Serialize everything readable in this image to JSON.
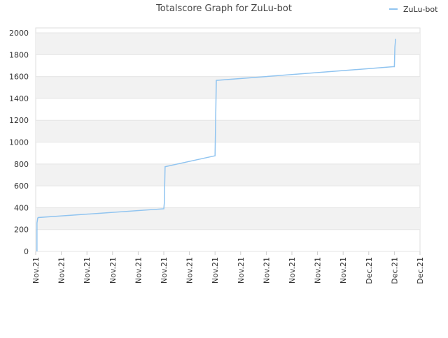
{
  "chart_data": {
    "type": "line",
    "title": "Totalscore Graph for ZuLu-bot",
    "x": [
      0.05,
      0.05,
      0.08,
      0.1,
      5.0,
      5.02,
      5.05,
      7.0,
      7.02,
      7.05,
      13.95,
      14.0,
      14.02,
      14.05
    ],
    "series": [
      {
        "name": "ZuLu-bot",
        "color": "#90c4f0",
        "values": [
          0,
          260,
          305,
          310,
          390,
          440,
          775,
          875,
          1150,
          1565,
          1690,
          1690,
          1870,
          1945
        ]
      }
    ],
    "xlim": [
      0,
      15
    ],
    "xticks": [
      {
        "value": 0,
        "label": "Nov.21"
      },
      {
        "value": 1,
        "label": "Nov.21"
      },
      {
        "value": 2,
        "label": "Nov.21"
      },
      {
        "value": 3,
        "label": "Nov.21"
      },
      {
        "value": 4,
        "label": "Nov.21"
      },
      {
        "value": 5,
        "label": "Nov.21"
      },
      {
        "value": 6,
        "label": "Nov.21"
      },
      {
        "value": 7,
        "label": "Nov.21"
      },
      {
        "value": 8,
        "label": "Nov.21"
      },
      {
        "value": 9,
        "label": "Nov.21"
      },
      {
        "value": 10,
        "label": "Nov.21"
      },
      {
        "value": 11,
        "label": "Nov.21"
      },
      {
        "value": 12,
        "label": "Nov.21"
      },
      {
        "value": 13,
        "label": "Dec.21"
      },
      {
        "value": 14,
        "label": "Dec.21"
      },
      {
        "value": 15,
        "label": "Dec.21"
      }
    ],
    "ylim": [
      0,
      2045
    ],
    "yticks": [
      0,
      200,
      400,
      600,
      800,
      1000,
      1200,
      1400,
      1600,
      1800,
      2000
    ],
    "grid": true,
    "legend": "top-right"
  }
}
